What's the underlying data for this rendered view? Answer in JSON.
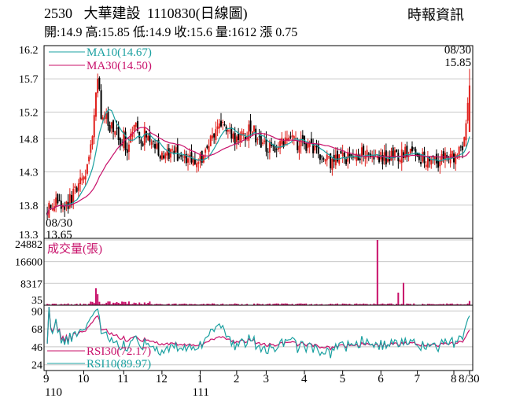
{
  "header": {
    "stock_code": "2530",
    "stock_name": "大華建設",
    "date_code": "1110830(日線圖)",
    "source": "時報資訊"
  },
  "ohlc": {
    "open_label": "開:",
    "open": "14.9",
    "high_label": "高:",
    "high": "15.85",
    "low_label": "低:",
    "low": "14.9",
    "close_label": "收:",
    "close": "15.6",
    "volume_label": "量:",
    "volume": "1612",
    "change_label": "漲",
    "change": "0.75"
  },
  "colors": {
    "up": "#e0201c",
    "down": "#000000",
    "ma10": "#1aa0a0",
    "ma30": "#c8106a",
    "volume": "#c8106a",
    "rsi30": "#c8106a",
    "rsi10": "#1aa0a0",
    "grid": "#c8c8c8"
  },
  "chart_data": [
    {
      "type": "candlestick",
      "panel": "price",
      "ylim": [
        13.3,
        16.2
      ],
      "ytick_labels": [
        "16.2",
        "15.7",
        "15.2",
        "14.8",
        "14.3",
        "13.8",
        "13.3"
      ],
      "ytick_values": [
        16.2,
        15.7,
        15.2,
        14.8,
        14.3,
        13.8,
        13.3
      ],
      "legend": [
        {
          "label": "MA10(14.67)",
          "color": "#1aa0a0"
        },
        {
          "label": "MA30(14.50)",
          "color": "#c8106a"
        }
      ],
      "annotations": {
        "high_date": "08/30",
        "high_value": "15.85",
        "low_date": "08/30",
        "low_value": "13.65"
      },
      "key_points": [
        {
          "date": "110/08/30",
          "close": 13.65,
          "note": "period low"
        },
        {
          "date": "110/10",
          "close": 15.75,
          "note": "early peak"
        },
        {
          "date": "110/11",
          "close": 14.8
        },
        {
          "date": "110/12",
          "close": 14.5
        },
        {
          "date": "111/01",
          "close": 15.1
        },
        {
          "date": "111/02",
          "close": 14.9
        },
        {
          "date": "111/03",
          "close": 14.6
        },
        {
          "date": "111/04",
          "close": 14.7
        },
        {
          "date": "111/05",
          "close": 14.3
        },
        {
          "date": "111/06",
          "close": 14.6
        },
        {
          "date": "111/07",
          "close": 14.5
        },
        {
          "date": "111/08",
          "close": 14.5
        },
        {
          "date": "111/08/30",
          "open": 14.9,
          "high": 15.85,
          "low": 14.9,
          "close": 15.6
        }
      ]
    },
    {
      "type": "bar",
      "panel": "volume",
      "title": "成交量(張)",
      "ylim": [
        0,
        24882
      ],
      "ytick_labels": [
        "24882",
        "16600",
        "8317",
        "35"
      ],
      "ytick_values": [
        24882,
        16600,
        8317,
        35
      ],
      "notable_bars": [
        {
          "date": "110/10",
          "value": 6500
        },
        {
          "date": "111/05/end",
          "value": 24882
        },
        {
          "date": "111/06",
          "value": 4800
        },
        {
          "date": "111/06/mid",
          "value": 8500
        },
        {
          "date": "111/08/30",
          "value": 1612
        }
      ]
    },
    {
      "type": "line",
      "panel": "rsi",
      "ylim": [
        17,
        97
      ],
      "ytick_labels": [
        "90",
        "68",
        "46",
        "24"
      ],
      "ytick_values": [
        90,
        68,
        46,
        24
      ],
      "series": [
        {
          "name": "RSI30(72.17)",
          "color": "#c8106a"
        },
        {
          "name": "RSI10(89.97)",
          "color": "#1aa0a0"
        }
      ]
    }
  ],
  "x_axis": {
    "month_labels": [
      "9",
      "10",
      "11",
      "12",
      "1",
      "2",
      "3",
      "4",
      "5",
      "6",
      "7",
      "8",
      "8/30"
    ],
    "year_labels": [
      "110",
      "111"
    ]
  }
}
